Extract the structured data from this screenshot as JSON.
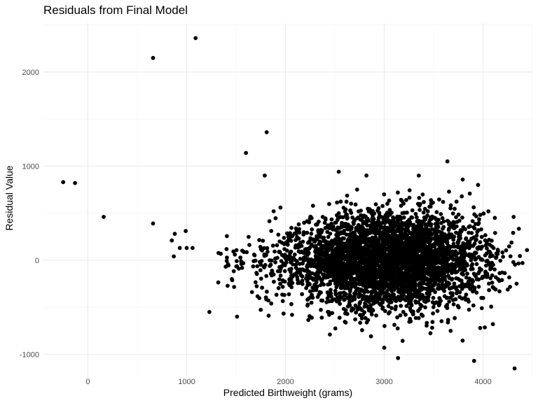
{
  "chart_data": {
    "type": "scatter",
    "title": "Residuals from Final Model",
    "xlabel": "Predicted Birthweight (grams)",
    "ylabel": "Residual Value",
    "xlim": [
      -450,
      4500
    ],
    "ylim": [
      -1250,
      2520
    ],
    "x_ticks": [
      0,
      1000,
      2000,
      3000,
      4000
    ],
    "y_ticks": [
      -1000,
      0,
      1000,
      2000
    ],
    "x_tick_labels": [
      "0",
      "1000",
      "2000",
      "3000",
      "4000"
    ],
    "y_tick_labels": [
      "-1000",
      "0",
      "1000",
      "2000"
    ],
    "grid": true,
    "point_color": "#000000",
    "outliers": [
      {
        "x": -250,
        "y": 830
      },
      {
        "x": -130,
        "y": 820
      },
      {
        "x": 160,
        "y": 460
      },
      {
        "x": 660,
        "y": 2150
      },
      {
        "x": 660,
        "y": 390
      },
      {
        "x": 1090,
        "y": 2360
      },
      {
        "x": 1600,
        "y": 1140
      },
      {
        "x": 1810,
        "y": 1360
      },
      {
        "x": 1790,
        "y": 900
      },
      {
        "x": 850,
        "y": 210
      },
      {
        "x": 880,
        "y": 280
      },
      {
        "x": 870,
        "y": 40
      },
      {
        "x": 930,
        "y": 130
      },
      {
        "x": 990,
        "y": 310
      },
      {
        "x": 1000,
        "y": 130
      },
      {
        "x": 1060,
        "y": 130
      },
      {
        "x": 1230,
        "y": -550
      },
      {
        "x": 1510,
        "y": -600
      },
      {
        "x": 1830,
        "y": -590
      },
      {
        "x": 2540,
        "y": 940
      },
      {
        "x": 3640,
        "y": 1050
      },
      {
        "x": 3950,
        "y": 800
      },
      {
        "x": 4120,
        "y": 450
      },
      {
        "x": 4310,
        "y": 460
      },
      {
        "x": 4400,
        "y": -30
      },
      {
        "x": 4340,
        "y": -250
      },
      {
        "x": 4100,
        "y": -680
      },
      {
        "x": 3910,
        "y": -1070
      },
      {
        "x": 4320,
        "y": -1150
      },
      {
        "x": 3140,
        "y": -1040
      },
      {
        "x": 2450,
        "y": -790
      },
      {
        "x": 3000,
        "y": -930
      },
      {
        "x": 1880,
        "y": 520
      },
      {
        "x": 1950,
        "y": 560
      },
      {
        "x": 3350,
        "y": 900
      },
      {
        "x": 2820,
        "y": 900
      }
    ],
    "clusters": [
      {
        "cx": 3100,
        "cy": 0,
        "sx": 420,
        "sy": 250,
        "n": 3300
      },
      {
        "cx": 2600,
        "cy": 0,
        "sx": 260,
        "sy": 230,
        "n": 450
      },
      {
        "cx": 2050,
        "cy": -50,
        "sx": 240,
        "sy": 180,
        "n": 140
      },
      {
        "cx": 1550,
        "cy": -60,
        "sx": 230,
        "sy": 130,
        "n": 55
      },
      {
        "cx": 3900,
        "cy": 0,
        "sx": 200,
        "sy": 250,
        "n": 120
      }
    ]
  }
}
